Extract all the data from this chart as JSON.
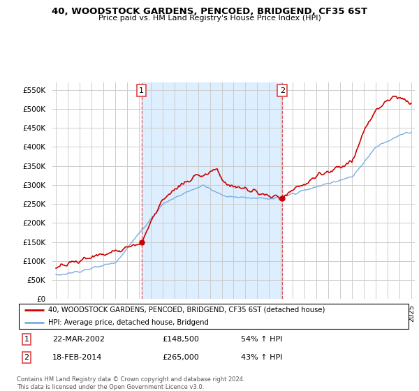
{
  "title": "40, WOODSTOCK GARDENS, PENCOED, BRIDGEND, CF35 6ST",
  "subtitle": "Price paid vs. HM Land Registry's House Price Index (HPI)",
  "ytick_values": [
    0,
    50000,
    100000,
    150000,
    200000,
    250000,
    300000,
    350000,
    400000,
    450000,
    500000,
    550000
  ],
  "ylim": [
    0,
    570000
  ],
  "sale1_date": 2002.22,
  "sale1_price": 148500,
  "sale2_date": 2014.12,
  "sale2_price": 265000,
  "vline1_x": 2002.22,
  "vline2_x": 2014.12,
  "xlim_left": 1994.7,
  "xlim_right": 2025.3,
  "legend_property": "40, WOODSTOCK GARDENS, PENCOED, BRIDGEND, CF35 6ST (detached house)",
  "legend_hpi": "HPI: Average price, detached house, Bridgend",
  "footnote": "Contains HM Land Registry data © Crown copyright and database right 2024.\nThis data is licensed under the Open Government Licence v3.0.",
  "property_color": "#cc0000",
  "hpi_color": "#7aade0",
  "shade_color": "#ddeeff",
  "vline_color": "#dd4444",
  "grid_color": "#cccccc"
}
